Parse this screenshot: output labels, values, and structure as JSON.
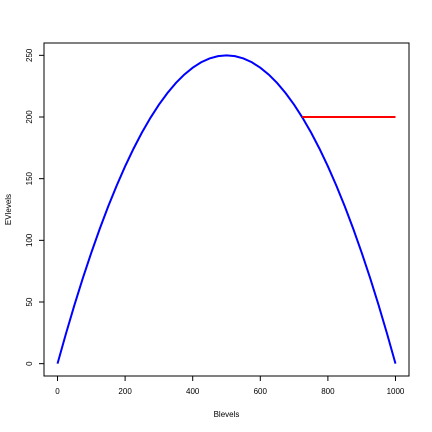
{
  "chart_data": {
    "type": "line",
    "x_label": "Blevels",
    "y_label": "EVlevels",
    "series": [
      {
        "color": "#0000ff",
        "x": [
          0,
          25,
          50,
          75,
          100,
          125,
          150,
          175,
          200,
          225,
          250,
          275,
          300,
          325,
          350,
          375,
          400,
          425,
          450,
          475,
          500,
          525,
          550,
          575,
          600,
          625,
          650,
          675,
          700,
          725,
          750,
          775,
          800,
          825,
          850,
          875,
          900,
          925,
          950,
          975,
          1000
        ],
        "values": [
          0,
          24.375,
          47.5,
          69.375,
          90,
          109.375,
          127.5,
          144.375,
          160,
          174.375,
          187.5,
          199.375,
          210,
          219.375,
          227.5,
          234.375,
          240,
          244.375,
          247.5,
          249.375,
          250,
          249.375,
          247.5,
          244.375,
          240,
          234.375,
          227.5,
          219.375,
          210,
          199.375,
          187.5,
          174.375,
          160,
          144.375,
          127.5,
          109.375,
          90,
          69.375,
          47.5,
          24.375,
          0
        ]
      },
      {
        "color": "#ff0000",
        "x": [
          724,
          1000
        ],
        "values": [
          200,
          200
        ]
      }
    ],
    "xlim": [
      -40,
      1040
    ],
    "xticks": [
      0,
      200,
      400,
      600,
      800,
      1000
    ],
    "ylim": [
      -10,
      260
    ],
    "yticks": [
      0,
      50,
      100,
      150,
      200,
      250
    ]
  }
}
